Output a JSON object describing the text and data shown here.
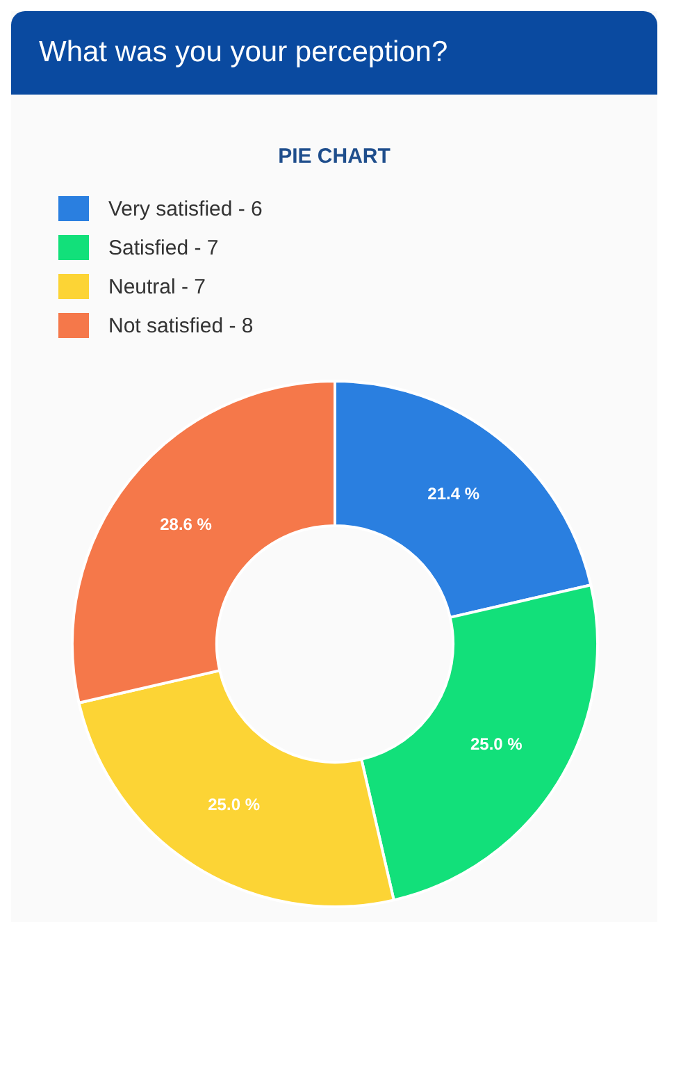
{
  "chart_data": {
    "type": "donut",
    "title": "What was you your perception?",
    "subtitle": "PIE CHART",
    "categories": [
      "Very satisfied - 6",
      "Satisfied - 7",
      "Neutral - 7",
      "Not satisfied - 8"
    ],
    "values": [
      21.4,
      25.0,
      25.0,
      28.6
    ],
    "colors": [
      "#2a7fe0",
      "#12e07a",
      "#fcd435",
      "#f5784a"
    ],
    "value_labels": [
      "21.4 %",
      "25.0 %",
      "25.0 %",
      "28.6 %"
    ],
    "legend": "top left"
  }
}
